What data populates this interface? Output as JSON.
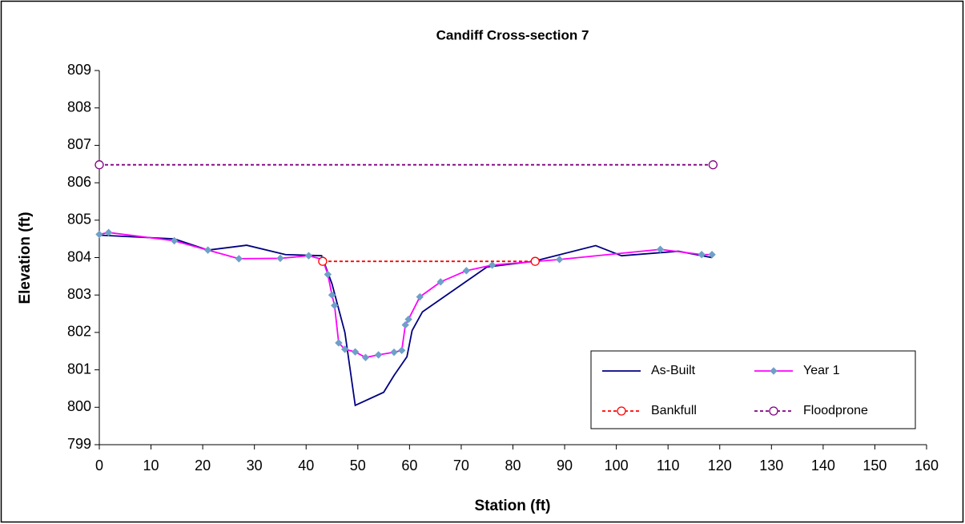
{
  "chart_data": {
    "type": "line",
    "title": "Candiff Cross-section 7",
    "xlabel": "Station (ft)",
    "ylabel": "Elevation (ft)",
    "xlim": [
      0,
      160
    ],
    "xticks": [
      0,
      10,
      20,
      30,
      40,
      50,
      60,
      70,
      80,
      90,
      100,
      110,
      120,
      130,
      140,
      150,
      160
    ],
    "ylim": [
      799,
      809
    ],
    "yticks": [
      799,
      800,
      801,
      802,
      803,
      804,
      805,
      806,
      807,
      808,
      809
    ],
    "grid": false,
    "legend": "lower right",
    "series": [
      {
        "name": "As-Built",
        "color": "#000080",
        "marker": "none",
        "dash": false,
        "x": [
          0,
          14.5,
          21,
          28.5,
          36,
          43,
          45,
          47.5,
          49.5,
          55,
          57,
          59.5,
          60.5,
          62.5,
          75,
          84,
          96,
          101,
          112,
          118.5
        ],
        "values": [
          804.6,
          804.5,
          804.2,
          804.33,
          804.08,
          804.05,
          803.3,
          802.0,
          800.05,
          800.4,
          800.85,
          801.35,
          802.05,
          802.55,
          803.75,
          803.9,
          804.32,
          804.05,
          804.17,
          804.0
        ]
      },
      {
        "name": "Year 1",
        "color": "#ff00ff",
        "marker": "diamond",
        "marker_color": "#6fa0c8",
        "dash": false,
        "x": [
          0,
          1.8,
          14.5,
          21,
          27,
          35,
          40.5,
          43.2,
          44.2,
          45,
          45.5,
          46.3,
          47.5,
          49.5,
          51.5,
          54,
          57,
          58.5,
          59.2,
          59.8,
          62,
          66,
          71,
          76,
          89,
          108.5,
          116.5,
          118.5
        ],
        "values": [
          804.62,
          804.67,
          804.45,
          804.2,
          803.97,
          803.98,
          804.05,
          803.95,
          803.55,
          803.0,
          802.72,
          801.72,
          801.55,
          801.48,
          801.33,
          801.4,
          801.47,
          801.52,
          802.2,
          802.35,
          802.95,
          803.35,
          803.65,
          803.8,
          803.95,
          804.22,
          804.08,
          804.08
        ]
      },
      {
        "name": "Bankfull",
        "color": "#ff0000",
        "marker": "circle",
        "marker_color": "#ff0000",
        "dash": true,
        "x": [
          43.2,
          84.3
        ],
        "values": [
          803.9,
          803.9
        ]
      },
      {
        "name": "Floodprone",
        "color": "#800080",
        "marker": "circle",
        "marker_color": "#800080",
        "dash": true,
        "x": [
          0,
          118.7
        ],
        "values": [
          806.48,
          806.48
        ]
      }
    ]
  }
}
